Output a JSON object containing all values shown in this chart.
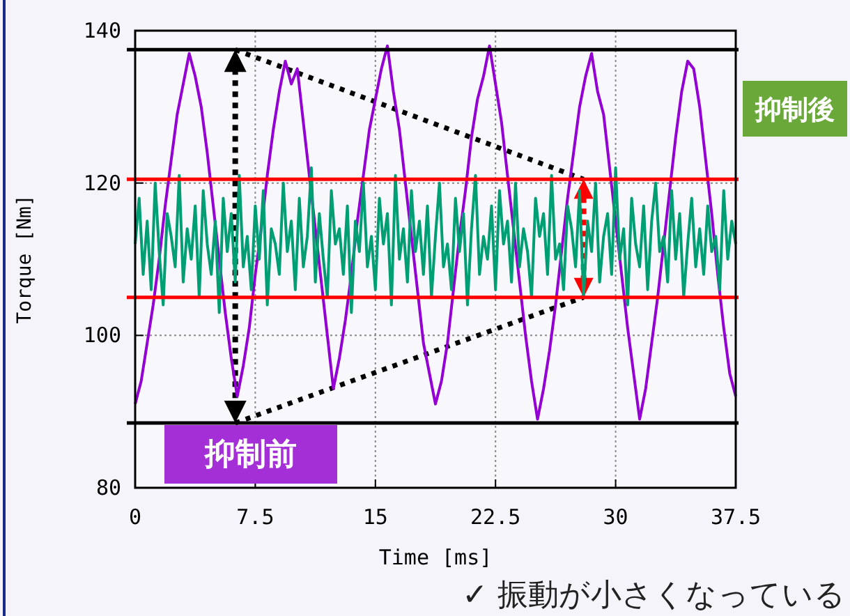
{
  "chart_data": {
    "type": "line",
    "xlabel": "Time [ms]",
    "ylabel": "Torque [Nm]",
    "xlim": [
      0,
      37.5
    ],
    "ylim": [
      80,
      140
    ],
    "xticks": [
      0,
      7.5,
      15,
      22.5,
      30,
      37.5
    ],
    "yticks": [
      80,
      100,
      120,
      140
    ],
    "grid": true,
    "marker": "none",
    "line_style": "solid",
    "series": [
      {
        "color": "#9400d3",
        "x": [
          0,
          0.375,
          0.75,
          1.125,
          1.5,
          1.875,
          2.25,
          2.625,
          3,
          3.375,
          3.75,
          4.125,
          4.5,
          4.875,
          5.25,
          5.625,
          6,
          6.375,
          6.75,
          7.125,
          7.5,
          7.875,
          8.25,
          8.625,
          9,
          9.375,
          9.75,
          10.125,
          10.5,
          10.875,
          11.25,
          11.625,
          12,
          12.375,
          12.75,
          13.125,
          13.5,
          13.875,
          14.25,
          14.625,
          15,
          15.375,
          15.75,
          16.125,
          16.5,
          16.875,
          17.25,
          17.625,
          18,
          18.375,
          18.75,
          19.125,
          19.5,
          19.875,
          20.25,
          20.625,
          21,
          21.375,
          21.75,
          22.125,
          22.5,
          22.875,
          23.25,
          23.625,
          24,
          24.375,
          24.75,
          25.125,
          25.5,
          25.875,
          26.25,
          26.625,
          27,
          27.375,
          27.75,
          28.125,
          28.5,
          28.875,
          29.25,
          29.625,
          30,
          30.375,
          30.75,
          31.125,
          31.5,
          31.875,
          32.25,
          32.625,
          33,
          33.375,
          33.75,
          34.125,
          34.5,
          34.875,
          35.25,
          35.625,
          36,
          36.375,
          36.75,
          37.125,
          37.5
        ],
        "values": [
          91,
          94,
          99,
          104,
          110,
          117,
          123,
          129,
          133,
          137,
          134,
          130,
          124,
          117,
          110,
          103,
          97,
          92,
          96,
          101,
          108,
          114,
          121,
          127,
          132,
          136,
          133,
          135,
          128,
          121,
          114,
          107,
          100,
          93,
          97,
          102,
          108,
          115,
          121,
          127,
          131,
          135,
          138,
          132,
          127,
          120,
          113,
          106,
          99,
          95,
          91,
          94,
          99,
          106,
          113,
          119,
          126,
          131,
          134,
          138,
          133,
          128,
          121,
          114,
          107,
          100,
          94,
          89,
          93,
          98,
          104,
          111,
          118,
          124,
          130,
          134,
          137,
          132,
          129,
          122,
          115,
          108,
          101,
          95,
          89,
          93,
          99,
          105,
          112,
          119,
          126,
          132,
          136,
          135,
          130,
          123,
          116,
          108,
          101,
          95,
          92
        ]
      },
      {
        "color": "#009e73",
        "x": [
          0,
          0.25,
          0.5,
          0.75,
          1,
          1.25,
          1.5,
          1.75,
          2,
          2.25,
          2.5,
          2.75,
          3,
          3.25,
          3.5,
          3.75,
          4,
          4.25,
          4.5,
          4.75,
          5,
          5.25,
          5.5,
          5.75,
          6,
          6.25,
          6.5,
          6.75,
          7,
          7.25,
          7.5,
          7.75,
          8,
          8.25,
          8.5,
          8.75,
          9,
          9.25,
          9.5,
          9.75,
          10,
          10.25,
          10.5,
          10.75,
          11,
          11.25,
          11.5,
          11.75,
          12,
          12.25,
          12.5,
          12.75,
          13,
          13.25,
          13.5,
          13.75,
          14,
          14.25,
          14.5,
          14.75,
          15,
          15.25,
          15.5,
          15.75,
          16,
          16.25,
          16.5,
          16.75,
          17,
          17.25,
          17.5,
          17.75,
          18,
          18.25,
          18.5,
          18.75,
          19,
          19.25,
          19.5,
          19.75,
          20,
          20.25,
          20.5,
          20.75,
          21,
          21.25,
          21.5,
          21.75,
          22,
          22.25,
          22.5,
          22.75,
          23,
          23.25,
          23.5,
          23.75,
          24,
          24.25,
          24.5,
          24.75,
          25,
          25.25,
          25.5,
          25.75,
          26,
          26.25,
          26.5,
          26.75,
          27,
          27.25,
          27.5,
          27.75,
          28,
          28.25,
          28.5,
          28.75,
          29,
          29.25,
          29.5,
          29.75,
          30,
          30.25,
          30.5,
          30.75,
          31,
          31.25,
          31.5,
          31.75,
          32,
          32.25,
          32.5,
          32.75,
          33,
          33.25,
          33.5,
          33.75,
          34,
          34.25,
          34.5,
          34.75,
          35,
          35.25,
          35.5,
          35.75,
          36,
          36.25,
          36.5,
          36.75,
          37,
          37.25,
          37.5
        ],
        "values": [
          112,
          118,
          108,
          115,
          106,
          120,
          111,
          104,
          116,
          113,
          109,
          121,
          107,
          114,
          110,
          117,
          105,
          119,
          112,
          108,
          115,
          103,
          118,
          111,
          116,
          107,
          121,
          109,
          113,
          106,
          117,
          110,
          119,
          104,
          114,
          112,
          108,
          120,
          111,
          115,
          106,
          118,
          109,
          113,
          122,
          107,
          116,
          110,
          105,
          119,
          112,
          114,
          108,
          117,
          103,
          115,
          111,
          120,
          109,
          113,
          106,
          118,
          112,
          116,
          104,
          121,
          110,
          114,
          107,
          119,
          111,
          115,
          108,
          117,
          105,
          113,
          120,
          109,
          112,
          106,
          118,
          111,
          116,
          104,
          114,
          121,
          108,
          113,
          110,
          117,
          106,
          119,
          112,
          115,
          107,
          120,
          109,
          114,
          111,
          105,
          118,
          113,
          116,
          108,
          121,
          110,
          112,
          106,
          117,
          114,
          109,
          119,
          105,
          115,
          111,
          120,
          107,
          113,
          116,
          108,
          122,
          110,
          114,
          104,
          118,
          112,
          109,
          117,
          106,
          115,
          120,
          111,
          113,
          107,
          119,
          110,
          116,
          105,
          112,
          118,
          109,
          114,
          108,
          117,
          111,
          113,
          106,
          119,
          110,
          115,
          112
        ]
      }
    ],
    "ref_lines": [
      {
        "axis": "y",
        "value": 137.5,
        "color": "#000000"
      },
      {
        "axis": "y",
        "value": 88.5,
        "color": "#000000"
      },
      {
        "axis": "y",
        "value": 120.5,
        "color": "#ff0000"
      },
      {
        "axis": "y",
        "value": 105,
        "color": "#ff0000"
      }
    ],
    "annotations": [
      "抑制後",
      "抑制前",
      "✓ 振動が小さくなっている"
    ]
  }
}
